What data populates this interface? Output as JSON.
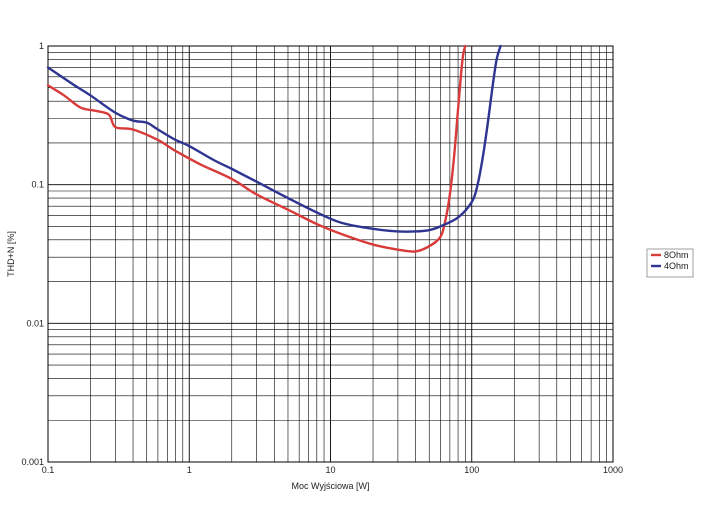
{
  "chart_data": {
    "type": "line",
    "title": "",
    "xlabel": "Moc Wyjściowa [W]",
    "ylabel": "THD+N [%]",
    "x_scale": "log",
    "y_scale": "log",
    "xlim": [
      0.1,
      1000
    ],
    "ylim": [
      0.001,
      1
    ],
    "x_ticks": [
      "0.1",
      "1",
      "10",
      "100",
      "1000"
    ],
    "y_ticks": [
      "1",
      "0.1",
      "0.01",
      "0.001"
    ],
    "grid": true,
    "legend_position": "right",
    "series": [
      {
        "name": "8Ohm",
        "color": "#d93a3a",
        "x": [
          0.1,
          0.13,
          0.17,
          0.22,
          0.27,
          0.3,
          0.4,
          0.6,
          0.8,
          1.2,
          2,
          3,
          5,
          8,
          12,
          20,
          30,
          40,
          50,
          60,
          65,
          70,
          75,
          80,
          86,
          90
        ],
        "y": [
          0.52,
          0.44,
          0.36,
          0.34,
          0.32,
          0.26,
          0.25,
          0.21,
          0.175,
          0.14,
          0.11,
          0.085,
          0.066,
          0.052,
          0.044,
          0.037,
          0.034,
          0.033,
          0.036,
          0.042,
          0.055,
          0.085,
          0.16,
          0.35,
          0.8,
          1.0
        ]
      },
      {
        "name": "4Ohm",
        "color": "#2e3591",
        "x": [
          0.1,
          0.15,
          0.2,
          0.3,
          0.4,
          0.5,
          0.6,
          0.8,
          1,
          1.5,
          2,
          3,
          5,
          8,
          12,
          20,
          30,
          40,
          50,
          60,
          80,
          100,
          110,
          120,
          130,
          140,
          150,
          160
        ],
        "y": [
          0.7,
          0.53,
          0.44,
          0.33,
          0.29,
          0.28,
          0.25,
          0.21,
          0.19,
          0.15,
          0.13,
          0.105,
          0.08,
          0.063,
          0.053,
          0.048,
          0.046,
          0.046,
          0.047,
          0.05,
          0.058,
          0.075,
          0.1,
          0.16,
          0.28,
          0.5,
          0.8,
          1.0
        ]
      }
    ]
  }
}
